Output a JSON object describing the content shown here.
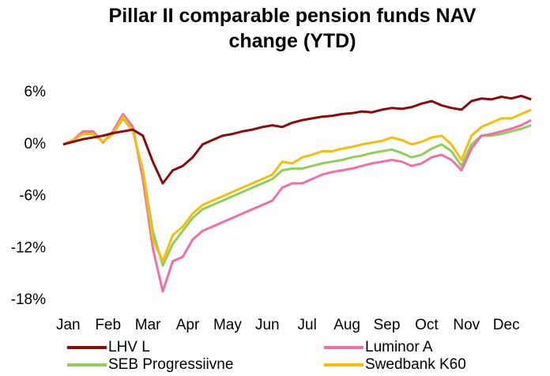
{
  "chart_data": {
    "type": "line",
    "title": "Pillar II comparable pension funds NAV change (YTD)",
    "categories": [
      null,
      "Jan",
      null,
      null,
      null,
      "Feb",
      null,
      null,
      null,
      "Mar",
      null,
      null,
      null,
      "Apr",
      null,
      null,
      null,
      "May",
      null,
      null,
      null,
      "Jun",
      null,
      null,
      null,
      "Jul",
      null,
      null,
      null,
      "Aug",
      null,
      null,
      null,
      "Sep",
      null,
      null,
      null,
      "Oct",
      null,
      null,
      null,
      "Nov",
      null,
      null,
      null,
      "Dec",
      null,
      null
    ],
    "series": [
      {
        "name": "LHV L",
        "color": "#8b0a0a",
        "values": [
          0,
          0.3,
          0.6,
          0.8,
          1.0,
          1.3,
          1.5,
          1.7,
          1.0,
          -2.0,
          -4.5,
          -3.0,
          -2.5,
          -1.5,
          0,
          0.5,
          1.0,
          1.2,
          1.5,
          1.7,
          2.0,
          2.2,
          2.0,
          2.5,
          2.8,
          3.0,
          3.2,
          3.3,
          3.5,
          3.6,
          3.8,
          3.7,
          4.0,
          4.2,
          4.1,
          4.3,
          4.7,
          5.0,
          4.5,
          4.2,
          4.0,
          5.0,
          5.3,
          5.2,
          5.5,
          5.3,
          5.6,
          5.2
        ]
      },
      {
        "name": "Luminor A",
        "color": "#f06ea9",
        "values": [
          0,
          0.5,
          1.5,
          1.5,
          0.2,
          1.5,
          3.5,
          2.0,
          -4,
          -12,
          -17,
          -13.5,
          -13,
          -11,
          -10,
          -9.5,
          -9,
          -8.5,
          -8,
          -7.5,
          -7,
          -6.5,
          -5,
          -4.5,
          -4.5,
          -4.0,
          -3.5,
          -3.2,
          -3.0,
          -2.8,
          -2.5,
          -2.2,
          -2.0,
          -1.8,
          -2.0,
          -2.5,
          -2.2,
          -1.5,
          -1.2,
          -1.8,
          -3.0,
          -0.5,
          1.0,
          1.2,
          1.5,
          1.8,
          2.2,
          2.8
        ]
      },
      {
        "name": "SEB Progressiivne",
        "color": "#8fce5a",
        "values": [
          0,
          0.5,
          1.5,
          1.3,
          0.3,
          1.2,
          3.0,
          1.5,
          -3,
          -10,
          -14,
          -11.5,
          -10,
          -8.5,
          -7.5,
          -7,
          -6.5,
          -6,
          -5.5,
          -5,
          -4.5,
          -4,
          -3,
          -2.8,
          -2.8,
          -2.5,
          -2.2,
          -2.0,
          -1.8,
          -1.5,
          -1.3,
          -1.0,
          -0.8,
          -0.6,
          -1.0,
          -1.5,
          -1.2,
          -0.5,
          0,
          -0.8,
          -2.5,
          0,
          1.0,
          1.0,
          1.2,
          1.5,
          1.8,
          2.2
        ]
      },
      {
        "name": "Swedbank K60",
        "color": "#f7bd0a",
        "values": [
          0,
          0.5,
          1.2,
          1.2,
          0.3,
          1.2,
          3.2,
          1.5,
          -3,
          -11,
          -13.5,
          -10.5,
          -9.5,
          -8,
          -7,
          -6.5,
          -6,
          -5.5,
          -5,
          -4.5,
          -4,
          -3.5,
          -2.0,
          -2.2,
          -1.5,
          -1.2,
          -0.8,
          -0.8,
          -0.5,
          -0.3,
          0,
          0.2,
          0.4,
          0.8,
          0.5,
          0,
          0.3,
          0.8,
          1.0,
          0,
          -1.8,
          1.0,
          2.0,
          2.5,
          3.0,
          3.0,
          3.5,
          4.0
        ]
      }
    ],
    "ylim": [
      -18,
      6
    ],
    "yticks": [
      {
        "value": 6,
        "label": "6%"
      },
      {
        "value": 0,
        "label": "0%"
      },
      {
        "value": -6,
        "label": "-6%"
      },
      {
        "value": -12,
        "label": "-12%"
      },
      {
        "value": -18,
        "label": "-18%"
      }
    ]
  }
}
